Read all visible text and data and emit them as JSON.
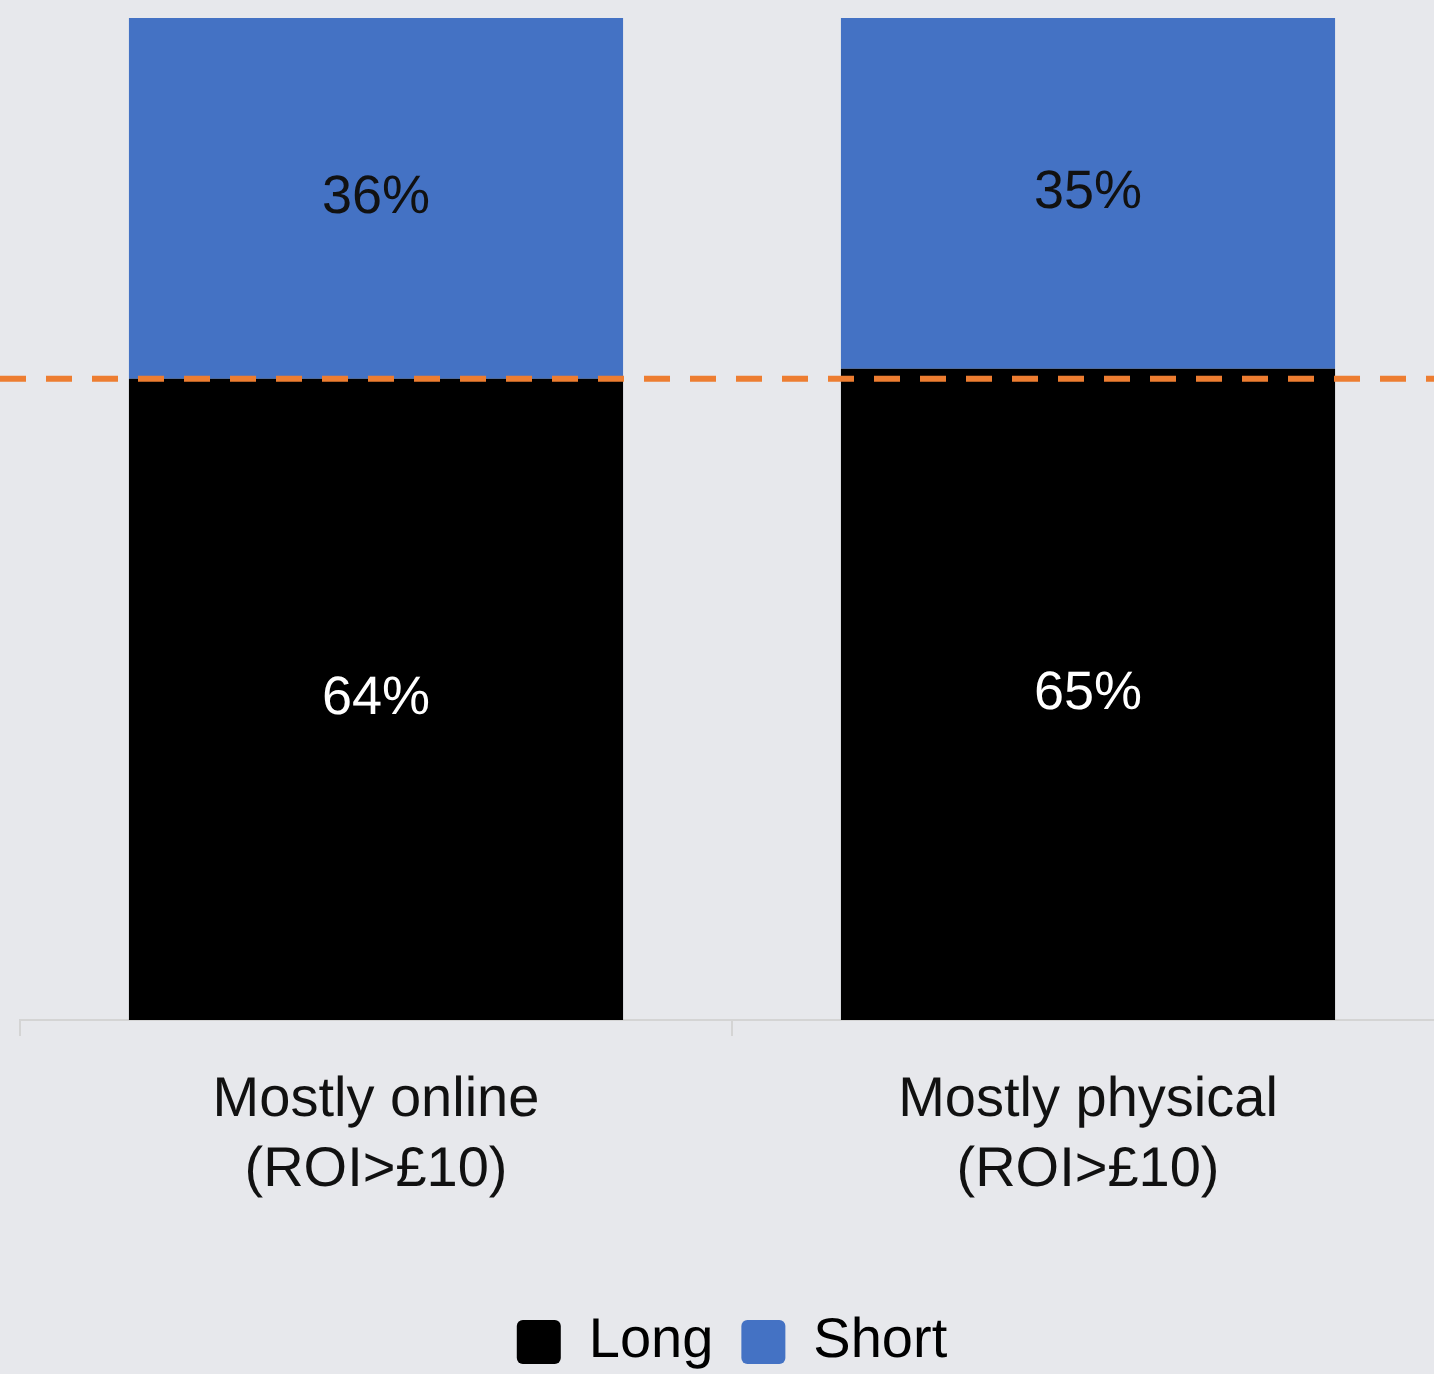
{
  "chart_data": {
    "type": "bar",
    "categories": [
      "Mostly online\n(ROI>£10)",
      "Mostly physical\n(ROI>£10)"
    ],
    "stacked": true,
    "series": [
      {
        "name": "Long",
        "color": "#000000",
        "values": [
          64,
          65
        ],
        "value_labels": [
          "64%",
          "65%"
        ]
      },
      {
        "name": "Short",
        "color": "#4472c4",
        "values": [
          36,
          35
        ],
        "value_labels": [
          "36%",
          "35%"
        ]
      }
    ],
    "ylim": [
      0,
      100
    ],
    "tick_labels": "x",
    "ref_lines": [
      {
        "axis": "y",
        "value": 64,
        "color": "#ed7d31",
        "line_style": "dashed"
      }
    ],
    "legend": "bottom"
  }
}
